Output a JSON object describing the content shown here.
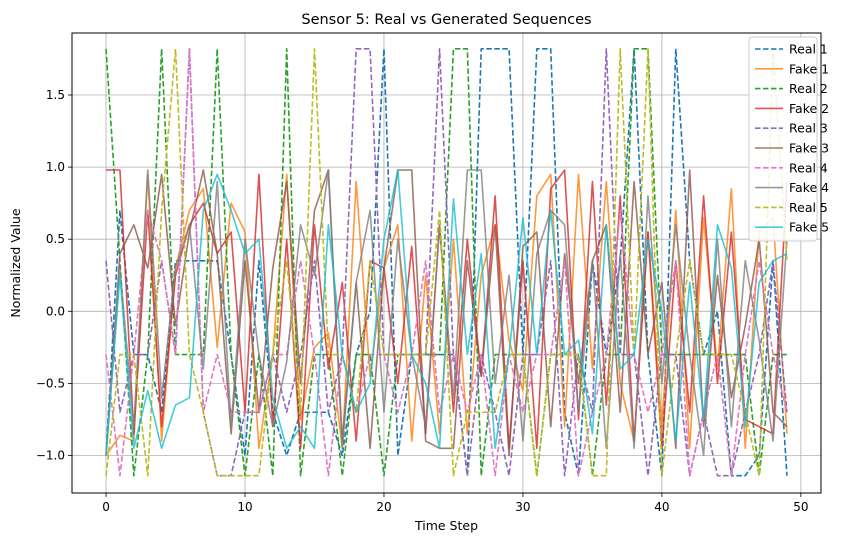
{
  "chart_data": {
    "type": "line",
    "title": "Sensor 5: Real vs Generated Sequences",
    "xlabel": "Time Step",
    "ylabel": "Normalized Value",
    "xlim": [
      -2.45,
      51.45
    ],
    "ylim": [
      -1.26,
      1.93
    ],
    "xticks": [
      0,
      10,
      20,
      30,
      40,
      50
    ],
    "yticks": [
      -1.0,
      -0.5,
      0.0,
      0.5,
      1.0,
      1.5
    ],
    "ytick_labels": [
      "−1.0",
      "−0.5",
      "0.0",
      "0.5",
      "1.0",
      "1.5"
    ],
    "grid": true,
    "legend_position": "top-right",
    "x": [
      0,
      1,
      2,
      3,
      4,
      5,
      6,
      7,
      8,
      9,
      10,
      11,
      12,
      13,
      14,
      15,
      16,
      17,
      18,
      19,
      20,
      21,
      22,
      23,
      24,
      25,
      26,
      27,
      28,
      29,
      30,
      31,
      32,
      33,
      34,
      35,
      36,
      37,
      38,
      39,
      40,
      41,
      42,
      43,
      44,
      45,
      46,
      47,
      48,
      49
    ],
    "series": [
      {
        "name": "Real 1",
        "color": "#1f77b4",
        "dashed": true,
        "values": [
          -1.0,
          0.7,
          -0.3,
          -0.3,
          -0.7,
          0.35,
          0.35,
          0.35,
          0.35,
          -0.3,
          -1.0,
          0.35,
          -0.7,
          -1.0,
          -0.7,
          -0.7,
          -0.7,
          -1.0,
          -0.3,
          0.0,
          1.82,
          -1.0,
          -0.3,
          -0.3,
          -0.3,
          -0.3,
          -1.14,
          1.82,
          1.82,
          1.82,
          -0.3,
          1.82,
          1.82,
          -0.7,
          -1.14,
          0.35,
          -0.3,
          0.35,
          1.82,
          -0.3,
          -1.14,
          1.82,
          0.35,
          -0.3,
          0.0,
          -1.14,
          -1.14,
          -1.0,
          0.35,
          -1.14
        ]
      },
      {
        "name": "Fake 1",
        "color": "#ff7f0e",
        "dashed": false,
        "values": [
          -1.0,
          -0.86,
          -0.9,
          0.95,
          -0.9,
          0.3,
          0.7,
          0.85,
          -0.25,
          0.75,
          0.55,
          -0.95,
          -0.3,
          0.95,
          -0.75,
          -0.25,
          -0.15,
          -0.95,
          0.9,
          -0.45,
          0.3,
          0.6,
          -0.9,
          0.25,
          -0.85,
          0.5,
          -0.85,
          0.25,
          0.6,
          -0.2,
          -0.55,
          0.8,
          0.95,
          -0.8,
          0.95,
          -0.4,
          0.9,
          -0.5,
          -0.9,
          0.55,
          -0.8,
          0.7,
          -0.95,
          0.65,
          -0.4,
          0.85,
          -0.95,
          0.55,
          0.65,
          -0.85
        ]
      },
      {
        "name": "Real 2",
        "color": "#2ca02c",
        "dashed": true,
        "values": [
          1.82,
          0.35,
          -1.14,
          -0.3,
          1.82,
          -0.3,
          -0.3,
          -0.3,
          1.82,
          -0.3,
          -1.14,
          -0.3,
          -1.14,
          1.82,
          -1.14,
          -0.3,
          -0.3,
          -1.14,
          -0.3,
          -0.3,
          -1.14,
          -0.3,
          -0.3,
          -0.3,
          -0.3,
          1.82,
          1.82,
          -1.14,
          -0.3,
          -0.3,
          -0.3,
          -1.14,
          -0.3,
          -0.3,
          -0.3,
          -1.14,
          -0.3,
          -0.3,
          1.82,
          1.82,
          -0.3,
          -0.3,
          -0.3,
          -0.3,
          -0.3,
          -0.3,
          -0.3,
          -1.14,
          -0.3,
          -0.3
        ]
      },
      {
        "name": "Fake 2",
        "color": "#d62728",
        "dashed": false,
        "values": [
          0.98,
          0.98,
          -0.85,
          0.7,
          -0.8,
          0.25,
          0.6,
          0.75,
          0.4,
          0.55,
          -0.7,
          0.95,
          -0.8,
          0.5,
          -0.95,
          0.6,
          -0.4,
          0.2,
          -0.9,
          0.35,
          0.3,
          -0.5,
          0.45,
          -0.85,
          0.6,
          -0.7,
          0.5,
          -0.45,
          0.8,
          -0.95,
          0.35,
          -0.95,
          0.85,
          0.98,
          -0.75,
          0.9,
          -0.65,
          0.8,
          -0.9,
          0.55,
          -0.95,
          0.35,
          -0.7,
          0.8,
          -0.5,
          0.55,
          -0.75,
          -0.8,
          -0.85,
          0.9
        ]
      },
      {
        "name": "Real 3",
        "color": "#9467bd",
        "dashed": true,
        "values": [
          0.35,
          -0.7,
          -0.3,
          -0.3,
          0.35,
          -0.3,
          1.82,
          -0.7,
          -1.14,
          -1.14,
          -0.7,
          -0.7,
          -0.3,
          -0.7,
          -0.3,
          0.35,
          -0.7,
          -0.3,
          1.82,
          1.82,
          -0.3,
          -0.3,
          -0.3,
          -0.3,
          1.82,
          -0.3,
          -1.14,
          -0.3,
          -0.7,
          -1.14,
          -0.3,
          -0.3,
          0.35,
          -1.14,
          -0.3,
          -0.7,
          1.82,
          -0.3,
          -0.3,
          -1.14,
          -0.3,
          -0.3,
          -1.14,
          -0.7,
          -1.14,
          -1.14,
          -0.7,
          -0.3,
          0.35,
          -0.7
        ]
      },
      {
        "name": "Fake 3",
        "color": "#8c564b",
        "dashed": false,
        "values": [
          -1.0,
          0.4,
          0.6,
          0.3,
          0.95,
          -0.1,
          0.55,
          0.98,
          0.4,
          -0.85,
          0.35,
          -0.7,
          0.3,
          0.9,
          -0.5,
          0.7,
          0.98,
          -0.9,
          0.2,
          -0.95,
          0.3,
          0.98,
          0.98,
          -0.9,
          -0.95,
          -0.95,
          0.35,
          -0.45,
          0.6,
          -1.0,
          0.45,
          0.55,
          -0.8,
          0.4,
          -0.5,
          0.35,
          0.6,
          -0.7,
          0.9,
          -0.3,
          0.2,
          -0.95,
          0.98,
          -0.8,
          0.25,
          -0.6,
          -0.1,
          0.5,
          -0.7,
          -0.8
        ]
      },
      {
        "name": "Real 4",
        "color": "#e377c2",
        "dashed": true,
        "values": [
          -0.3,
          -1.14,
          -0.3,
          0.7,
          0.35,
          -0.3,
          1.82,
          -0.7,
          -0.3,
          -0.7,
          -0.7,
          -0.7,
          -0.3,
          -0.3,
          0.35,
          -0.3,
          -1.14,
          -0.3,
          -0.7,
          -0.3,
          -0.3,
          -0.7,
          -0.3,
          0.35,
          -0.7,
          -0.3,
          -0.7,
          -0.3,
          -1.14,
          -0.3,
          -0.7,
          -0.3,
          -0.3,
          0.35,
          -1.14,
          -0.7,
          -0.3,
          0.7,
          -0.3,
          -0.7,
          -0.3,
          0.35,
          -1.14,
          -0.7,
          -0.3,
          -1.14,
          -0.3,
          0.35,
          -0.3,
          -0.7
        ]
      },
      {
        "name": "Fake 4",
        "color": "#7f7f7f",
        "dashed": false,
        "values": [
          -1.0,
          0.3,
          -0.8,
          0.98,
          -0.6,
          0.3,
          0.6,
          -0.4,
          0.9,
          -0.8,
          0.5,
          -0.3,
          -0.8,
          -0.35,
          0.6,
          0.25,
          0.98,
          -0.95,
          0.2,
          0.7,
          -0.7,
          0.5,
          -0.3,
          -0.8,
          0.6,
          -0.6,
          0.98,
          0.98,
          -0.5,
          0.25,
          -0.9,
          0.4,
          0.7,
          0.6,
          -0.7,
          0.35,
          -0.95,
          0.4,
          -0.95,
          0.8,
          -0.5,
          0.6,
          -0.3,
          -1.0,
          0.5,
          -0.8,
          0.35,
          -0.2,
          -0.9,
          0.5
        ]
      },
      {
        "name": "Real 5",
        "color": "#bcbd22",
        "dashed": true,
        "values": [
          -1.14,
          -0.3,
          -0.3,
          -1.14,
          0.7,
          1.82,
          -0.3,
          -0.7,
          -1.14,
          -1.14,
          -1.14,
          -1.14,
          -0.3,
          0.35,
          -0.7,
          1.82,
          -0.3,
          -0.3,
          -0.7,
          0.35,
          -0.3,
          -0.3,
          -0.3,
          -0.3,
          0.7,
          -1.14,
          -0.7,
          -0.7,
          -0.7,
          -0.3,
          -0.3,
          -1.14,
          -0.3,
          -0.3,
          -0.3,
          -1.14,
          -1.14,
          1.82,
          -0.3,
          1.82,
          -1.14,
          -0.3,
          0.35,
          -0.3,
          -0.3,
          -0.3,
          -0.7,
          -1.14,
          1.82,
          0.35
        ]
      },
      {
        "name": "Fake 5",
        "color": "#17becf",
        "dashed": false,
        "values": [
          -1.0,
          0.25,
          -0.95,
          -0.55,
          -0.95,
          -0.65,
          -0.6,
          0.7,
          0.95,
          0.7,
          0.4,
          0.5,
          -0.6,
          -0.95,
          -0.8,
          -0.95,
          0.6,
          -0.3,
          -0.7,
          -0.5,
          0.5,
          0.98,
          -0.3,
          -0.5,
          -0.95,
          0.78,
          -0.3,
          0.4,
          -0.95,
          -0.3,
          0.65,
          -0.3,
          0.7,
          -0.3,
          -0.2,
          -0.85,
          0.6,
          -0.4,
          -0.3,
          0.5,
          0.0,
          -0.9,
          0.2,
          -0.75,
          0.6,
          0.3,
          -0.8,
          0.2,
          0.35,
          0.4
        ]
      }
    ]
  }
}
